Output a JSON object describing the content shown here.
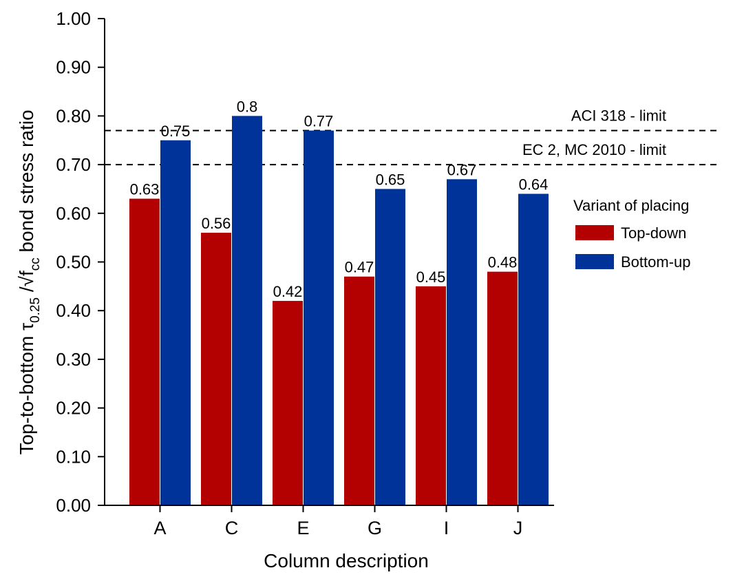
{
  "chart_data": {
    "type": "bar",
    "categories": [
      "A",
      "C",
      "E",
      "G",
      "I",
      "J"
    ],
    "series": [
      {
        "name": "Top-down",
        "color": "#b30000",
        "values": [
          0.63,
          0.56,
          0.42,
          0.47,
          0.45,
          0.48
        ],
        "labels": [
          "0.63",
          "0.56",
          "0.42",
          "0.47",
          "0.45",
          "0.48"
        ]
      },
      {
        "name": "Bottom-up",
        "color": "#003399",
        "values": [
          0.75,
          0.8,
          0.77,
          0.65,
          0.67,
          0.64
        ],
        "labels": [
          "0.75",
          "0.8",
          "0.77",
          "0.65",
          "0.67",
          "0.64"
        ]
      }
    ],
    "xlabel": "Column description",
    "ylabel": {
      "prefix": "Top-to-bottom τ",
      "tau_subscript": "0.25",
      "mid": " /√f",
      "f_subscript": "cc",
      "suffix": " bond stress ratio"
    },
    "ylim": [
      0,
      1
    ],
    "yticks": [
      "0.00",
      "0.10",
      "0.20",
      "0.30",
      "0.40",
      "0.50",
      "0.60",
      "0.70",
      "0.80",
      "0.90",
      "1.00"
    ],
    "reference_lines": [
      {
        "value": 0.77,
        "label": "ACI 318 - limit"
      },
      {
        "value": 0.7,
        "label": "EC 2, MC 2010 - limit"
      }
    ],
    "legend": {
      "title": "Variant of placing",
      "placement": "right",
      "entries": [
        "Top-down",
        "Bottom-up"
      ]
    }
  }
}
